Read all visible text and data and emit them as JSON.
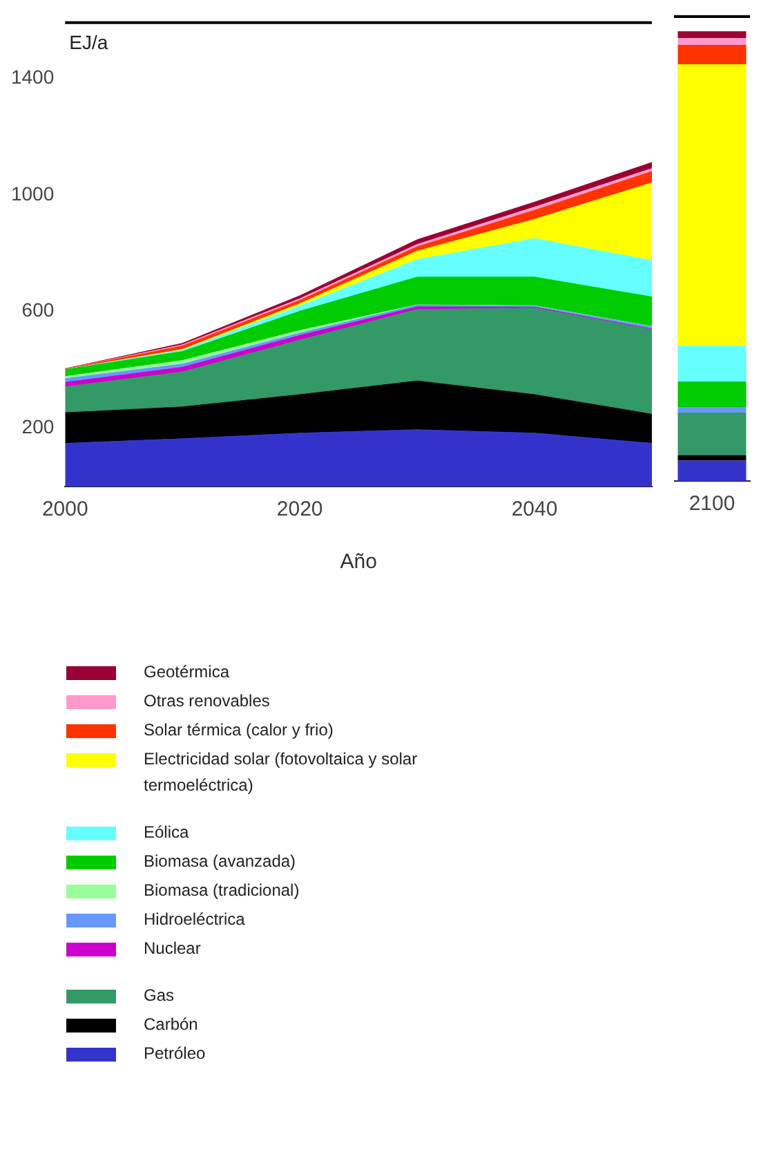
{
  "chart_data": [
    {
      "type": "area",
      "stacked": true,
      "xlabel": "Año",
      "ylabel": "EJ/a",
      "x": [
        2000,
        2010,
        2020,
        2030,
        2040,
        2050
      ],
      "xlim": [
        2000,
        2050
      ],
      "xticks": [
        2000,
        2020,
        2040
      ],
      "ylim": [
        0,
        1590
      ],
      "yticks": [
        200,
        600,
        1000,
        1400
      ],
      "grid": false,
      "legend": "bottom",
      "series": [
        {
          "name": "Petróleo",
          "color": "#3333cc",
          "values": [
            148,
            164,
            183,
            195,
            183,
            148
          ]
        },
        {
          "name": "Carbón",
          "color": "#000000",
          "values": [
            105,
            109,
            132,
            167,
            132,
            100
          ]
        },
        {
          "name": "Gas",
          "color": "#339966",
          "values": [
            89,
            120,
            187,
            245,
            297,
            290
          ]
        },
        {
          "name": "Nuclear",
          "color": "#cc00cc",
          "values": [
            15,
            16,
            16,
            9,
            3,
            2
          ]
        },
        {
          "name": "Hidroeléctrica",
          "color": "#6699ff",
          "values": [
            13,
            11,
            8,
            6,
            4,
            8
          ]
        },
        {
          "name": "Biomasa (tradicional)",
          "color": "#99ff99",
          "values": [
            7,
            12,
            9,
            1,
            1,
            1
          ]
        },
        {
          "name": "Biomasa (avanzada)",
          "color": "#00cc00",
          "values": [
            24,
            31,
            66,
            95,
            98,
            101
          ]
        },
        {
          "name": "Eólica",
          "color": "#66ffff",
          "values": [
            0,
            5,
            18,
            60,
            132,
            125
          ]
        },
        {
          "name": "Electricidad solar (fotovoltaica y solar termoeléctrica)",
          "color": "#ffff00",
          "values": [
            0,
            2,
            8,
            29,
            66,
            266
          ]
        },
        {
          "name": "Solar térmica (calor y frio)",
          "color": "#ff3300",
          "values": [
            1,
            12,
            11,
            15,
            31,
            39
          ]
        },
        {
          "name": "Otras renovables",
          "color": "#ff99cc",
          "values": [
            1,
            4,
            6,
            8,
            11,
            10
          ]
        },
        {
          "name": "Geotérmica",
          "color": "#990033",
          "values": [
            1,
            5,
            10,
            16,
            17,
            21
          ]
        }
      ]
    },
    {
      "type": "bar",
      "stacked": true,
      "categories": [
        "2100"
      ],
      "ylim": [
        0,
        1590
      ],
      "tick_labels": "x",
      "grid": false,
      "series": [
        {
          "color": "#3333cc",
          "values": [
            70
          ]
        },
        {
          "color": "#000000",
          "values": [
            19
          ]
        },
        {
          "color": "#339966",
          "values": [
            145
          ]
        },
        {
          "color": "#cc00cc",
          "values": [
            0
          ]
        },
        {
          "color": "#6699ff",
          "values": [
            19
          ]
        },
        {
          "color": "#99ff99",
          "values": [
            0
          ]
        },
        {
          "color": "#00cc00",
          "values": [
            88
          ]
        },
        {
          "color": "#66ffff",
          "values": [
            122
          ]
        },
        {
          "color": "#ffff00",
          "values": [
            964
          ]
        },
        {
          "color": "#ff3300",
          "values": [
            66
          ]
        },
        {
          "color": "#ff99cc",
          "values": [
            23
          ]
        },
        {
          "color": "#990033",
          "values": [
            24
          ]
        }
      ]
    }
  ]
}
